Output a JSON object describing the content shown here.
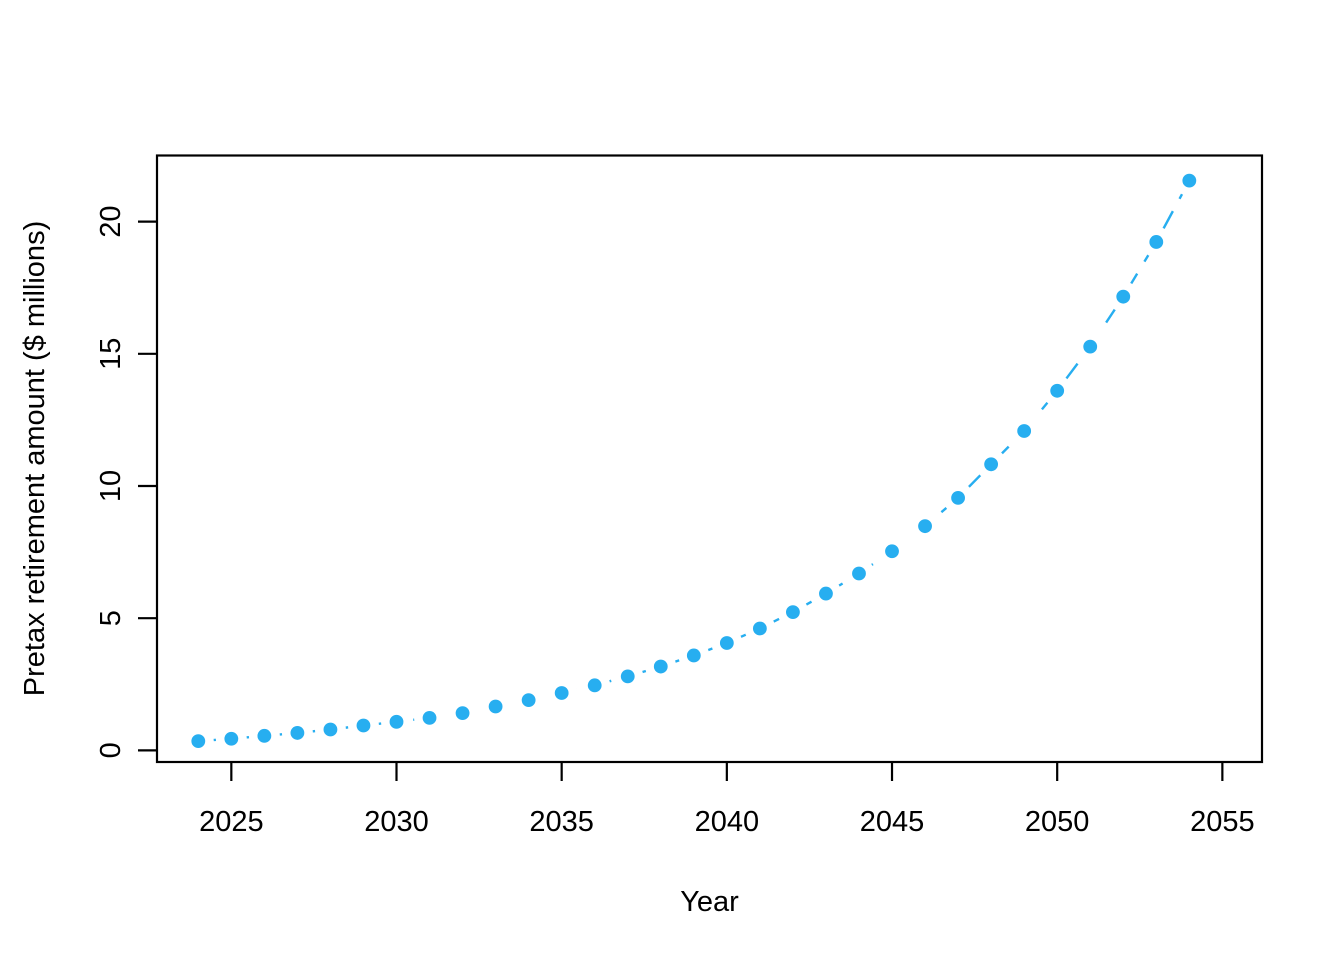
{
  "chart_data": {
    "type": "scatter",
    "title": "",
    "xlabel": "Year",
    "ylabel": "Pretax retirement amount ($ millions)",
    "x_ticks": [
      2025,
      2030,
      2035,
      2040,
      2045,
      2050,
      2055
    ],
    "x_tick_labels": [
      "2025",
      "2030",
      "2035",
      "2040",
      "2045",
      "2050",
      "2055"
    ],
    "y_ticks": [
      0,
      5,
      10,
      15,
      20
    ],
    "y_tick_labels": [
      "0",
      "5",
      "10",
      "15",
      "20"
    ],
    "xlim": [
      2022.75,
      2056.2
    ],
    "ylim": [
      -0.44,
      22.5
    ],
    "grid": false,
    "legend": "none",
    "marker": "filled-circle",
    "line_style": "dashed",
    "point_color": "#27AEF0",
    "axis_color": "#000000",
    "background_color": "#FFFFFF",
    "series": [
      {
        "name": "Pretax retirement amount",
        "x": [
          2024,
          2025,
          2026,
          2027,
          2028,
          2029,
          2030,
          2031,
          2032,
          2033,
          2034,
          2035,
          2036,
          2037,
          2038,
          2039,
          2040,
          2041,
          2042,
          2043,
          2044,
          2045,
          2046,
          2047,
          2048,
          2049,
          2050,
          2051,
          2052,
          2053,
          2054
        ],
        "y": [
          0.35,
          0.44,
          0.55,
          0.66,
          0.79,
          0.94,
          1.08,
          1.23,
          1.41,
          1.66,
          1.9,
          2.17,
          2.46,
          2.8,
          3.17,
          3.59,
          4.06,
          4.61,
          5.23,
          5.93,
          6.69,
          7.53,
          8.48,
          9.55,
          10.82,
          12.08,
          13.6,
          15.27,
          17.16,
          19.23,
          21.55
        ]
      }
    ]
  }
}
